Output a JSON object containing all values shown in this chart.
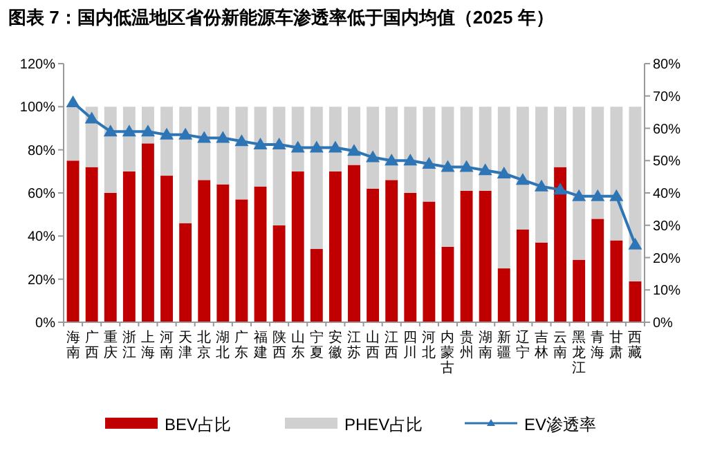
{
  "chart_data": {
    "type": "bar",
    "title": "图表 7：国内低温地区省份新能源车渗透率低于国内均值（2025 年）",
    "categories": [
      "海南",
      "广西",
      "重庆",
      "浙江",
      "上海",
      "河南",
      "天津",
      "北京",
      "湖北",
      "广东",
      "福建",
      "陕西",
      "山东",
      "宁夏",
      "安徽",
      "江苏",
      "山西",
      "江西",
      "四川",
      "河北",
      "内蒙古",
      "贵州",
      "湖南",
      "新疆",
      "辽宁",
      "吉林",
      "云南",
      "黑龙江",
      "青海",
      "甘肃",
      "西藏"
    ],
    "stacked": true,
    "series": [
      {
        "name": "BEV占比",
        "color": "#c00000",
        "values": [
          75,
          72,
          60,
          70,
          83,
          68,
          46,
          66,
          64,
          57,
          63,
          45,
          70,
          34,
          70,
          73,
          62,
          66,
          60,
          56,
          35,
          61,
          61,
          25,
          43,
          37,
          72,
          29,
          48,
          38,
          19
        ]
      },
      {
        "name": "PHEV占比",
        "color": "#d0d0d0",
        "values": [
          25,
          28,
          40,
          30,
          17,
          32,
          54,
          34,
          36,
          43,
          37,
          55,
          30,
          66,
          30,
          27,
          38,
          34,
          40,
          44,
          65,
          39,
          39,
          75,
          57,
          63,
          28,
          71,
          52,
          62,
          81
        ]
      },
      {
        "name": "EV渗透率",
        "type": "line",
        "axis": "y2",
        "color": "#2e75b6",
        "marker": "triangle",
        "values": [
          68,
          63,
          59,
          59,
          59,
          58,
          58,
          57,
          57,
          56,
          55,
          55,
          54,
          54,
          54,
          53,
          51,
          50,
          50,
          49,
          48,
          48,
          47,
          46,
          44,
          42,
          41,
          39,
          39,
          39,
          24
        ]
      }
    ],
    "ylim": [
      0,
      120
    ],
    "yticks": [
      {
        "value": 0,
        "label": "0%"
      },
      {
        "value": 20,
        "label": "20%"
      },
      {
        "value": 40,
        "label": "40%"
      },
      {
        "value": 60,
        "label": "60%"
      },
      {
        "value": 80,
        "label": "80%"
      },
      {
        "value": 100,
        "label": "100%"
      },
      {
        "value": 120,
        "label": "120%"
      }
    ],
    "y2lim": [
      0,
      80
    ],
    "y2ticks": [
      {
        "value": 0,
        "label": "0%"
      },
      {
        "value": 10,
        "label": "10%"
      },
      {
        "value": 20,
        "label": "20%"
      },
      {
        "value": 30,
        "label": "30%"
      },
      {
        "value": 40,
        "label": "40%"
      },
      {
        "value": 50,
        "label": "50%"
      },
      {
        "value": 60,
        "label": "60%"
      },
      {
        "value": 70,
        "label": "70%"
      },
      {
        "value": 80,
        "label": "80%"
      }
    ],
    "legend": "bottom"
  }
}
